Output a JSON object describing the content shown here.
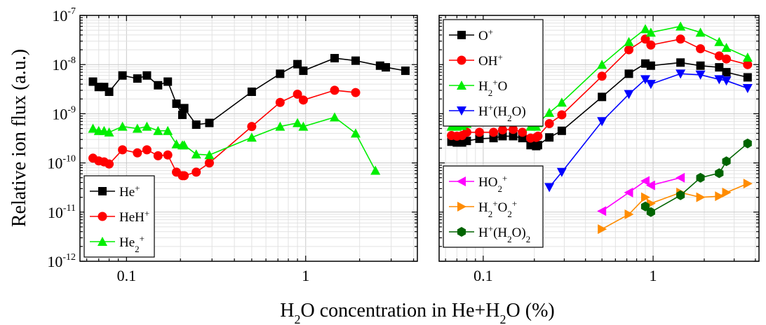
{
  "chart_data": {
    "type": "line",
    "xlabel": {
      "main": "H",
      "sub": "2",
      "rest": "O concentration in He+H",
      "sub2": "2",
      "tail": "O (%)"
    },
    "ylabel": "Relative ion flux (a.u.)",
    "x_scale": "log",
    "y_scale": "log",
    "xlim": [
      0.055,
      4.2
    ],
    "ylim": [
      1e-12,
      1e-07
    ],
    "x_ticks": [
      {
        "value": 0.1,
        "label": "0.1"
      },
      {
        "value": 1,
        "label": "1"
      }
    ],
    "y_ticks": [
      {
        "value": 1e-12,
        "base": "10",
        "exp": "-12"
      },
      {
        "value": 1e-11,
        "base": "10",
        "exp": "-11"
      },
      {
        "value": 1e-10,
        "base": "10",
        "exp": "-10"
      },
      {
        "value": 1e-09,
        "base": "10",
        "exp": "-9"
      },
      {
        "value": 1e-08,
        "base": "10",
        "exp": "-8"
      },
      {
        "value": 1e-07,
        "base": "10",
        "exp": "-7"
      }
    ],
    "grid": true,
    "panels": [
      {
        "id": "left",
        "legend_position": "bottom-left",
        "series": [
          {
            "name": "He",
            "sup": "+",
            "sub": "",
            "color": "#000000",
            "marker": "square",
            "x": [
              0.065,
              0.07,
              0.075,
              0.08,
              0.095,
              0.115,
              0.13,
              0.15,
              0.17,
              0.19,
              0.205,
              0.21,
              0.245,
              0.29,
              0.5,
              0.72,
              0.9,
              0.97,
              1.45,
              1.9,
              2.6,
              2.8,
              3.6
            ],
            "y": [
              4.5e-09,
              3.5e-09,
              3.5e-09,
              2.8e-09,
              6e-09,
              5.2e-09,
              6e-09,
              3.8e-09,
              4.5e-09,
              1.6e-09,
              9.5e-10,
              1.3e-09,
              6e-10,
              6.5e-10,
              2.8e-09,
              6.5e-09,
              1.02e-08,
              7.5e-09,
              1.35e-08,
              1.2e-08,
              9.5e-09,
              8.8e-09,
              7.5e-09
            ]
          },
          {
            "name": "HeH",
            "sup": "+",
            "sub": "",
            "color": "#ff0000",
            "marker": "circle",
            "x": [
              0.065,
              0.07,
              0.075,
              0.08,
              0.095,
              0.115,
              0.13,
              0.15,
              0.17,
              0.19,
              0.205,
              0.21,
              0.245,
              0.29,
              0.5,
              0.72,
              0.9,
              0.97,
              1.45,
              1.9
            ],
            "y": [
              1.25e-10,
              1.1e-10,
              1.05e-10,
              9.5e-11,
              1.85e-10,
              1.6e-10,
              1.85e-10,
              1.4e-10,
              1.45e-10,
              6.5e-11,
              5.5e-11,
              5.5e-11,
              6.5e-11,
              1e-10,
              5.5e-10,
              1.7e-09,
              2.5e-09,
              1.9e-09,
              3e-09,
              2.7e-09
            ]
          },
          {
            "name": "He",
            "sup": "+",
            "sub": "2",
            "color": "#00ee00",
            "marker": "triangle-up",
            "x": [
              0.065,
              0.07,
              0.075,
              0.08,
              0.095,
              0.115,
              0.13,
              0.15,
              0.17,
              0.19,
              0.205,
              0.21,
              0.245,
              0.29,
              0.5,
              0.72,
              0.9,
              0.97,
              1.45,
              1.9,
              2.45
            ],
            "y": [
              5e-10,
              4.5e-10,
              4.5e-10,
              4.2e-10,
              5.5e-10,
              5e-10,
              5.5e-10,
              4.5e-10,
              4.5e-10,
              2.4e-10,
              2.3e-10,
              2.3e-10,
              1.5e-10,
              1.45e-10,
              3.3e-10,
              5.5e-10,
              6.5e-10,
              5.5e-10,
              8.5e-10,
              4e-10,
              7e-11
            ]
          }
        ]
      },
      {
        "id": "right",
        "legend_position": "top-left",
        "legend2_position": "bottom-left",
        "series": [
          {
            "name": "O",
            "sup": "+",
            "sub": "",
            "color": "#000000",
            "marker": "square",
            "legend": 1,
            "x": [
              0.065,
              0.07,
              0.075,
              0.08,
              0.095,
              0.115,
              0.13,
              0.15,
              0.17,
              0.19,
              0.205,
              0.21,
              0.245,
              0.29,
              0.5,
              0.72,
              0.9,
              0.97,
              1.45,
              1.9,
              2.45,
              2.7,
              3.6
            ],
            "y": [
              2.7e-10,
              2.6e-10,
              2.6e-10,
              2.8e-10,
              3.1e-10,
              3.2e-10,
              3.5e-10,
              3.5e-10,
              3.2e-10,
              2.3e-10,
              2.2e-10,
              2.3e-10,
              3.3e-10,
              4.5e-10,
              2.2e-09,
              6.5e-09,
              1.05e-08,
              9.5e-09,
              1.1e-08,
              9.5e-09,
              8.8e-09,
              7e-09,
              5.5e-09
            ]
          },
          {
            "name": "OH",
            "sup": "+",
            "sub": "",
            "color": "#ff0000",
            "marker": "circle",
            "legend": 1,
            "x": [
              0.065,
              0.07,
              0.075,
              0.08,
              0.095,
              0.115,
              0.13,
              0.15,
              0.17,
              0.19,
              0.205,
              0.21,
              0.245,
              0.29,
              0.5,
              0.72,
              0.9,
              0.97,
              1.45,
              1.9,
              2.45,
              2.7,
              3.6
            ],
            "y": [
              3.6e-10,
              3.5e-10,
              3.6e-10,
              4.2e-10,
              4.2e-10,
              4.2e-10,
              4.7e-10,
              4.8e-10,
              4.2e-10,
              3.2e-10,
              3.3e-10,
              3.5e-10,
              6.3e-10,
              9.5e-10,
              5.8e-09,
              2e-08,
              3.3e-08,
              2.5e-08,
              3.3e-08,
              2.1e-08,
              1.5e-08,
              1.3e-08,
              1e-08
            ]
          },
          {
            "name": "H",
            "sup": "+",
            "sub": "2",
            "rest": "O",
            "color": "#00ee00",
            "marker": "triangle-up",
            "legend": 1,
            "x": [
              0.065,
              0.07,
              0.075,
              0.08,
              0.095,
              0.115,
              0.13,
              0.15,
              0.17,
              0.19,
              0.205,
              0.21,
              0.245,
              0.29,
              0.5,
              0.72,
              0.9,
              0.97,
              1.45,
              1.9,
              2.45,
              2.7,
              3.6
            ],
            "y": [
              5.5e-10,
              5.5e-10,
              5.7e-10,
              6.3e-10,
              6.8e-10,
              6.8e-10,
              7e-10,
              7e-10,
              6.8e-10,
              5.5e-10,
              5.5e-10,
              6.5e-10,
              1.05e-09,
              1.7e-09,
              1e-08,
              2.9e-08,
              5.3e-08,
              4.5e-08,
              6e-08,
              4.5e-08,
              2.9e-08,
              2.2e-08,
              1.4e-08
            ]
          },
          {
            "name": "H",
            "sup": "+",
            "sub": "",
            "rest": "(H2O)",
            "color": "#0000ff",
            "marker": "triangle-down",
            "legend": 1,
            "x": [
              0.245,
              0.29,
              0.5,
              0.72,
              0.9,
              0.97,
              1.45,
              1.9,
              2.45,
              2.7,
              3.6
            ],
            "y": [
              3.2e-11,
              6.5e-11,
              7e-10,
              2.5e-09,
              5e-09,
              4e-09,
              6.5e-09,
              6.2e-09,
              5e-09,
              4.7e-09,
              3.3e-09
            ]
          },
          {
            "name": "HO",
            "sup": "+",
            "sub": "2",
            "color": "#ff00ff",
            "marker": "triangle-left",
            "legend": 2,
            "x": [
              0.5,
              0.72,
              0.9,
              0.97,
              1.45
            ],
            "y": [
              1.05e-11,
              2.5e-11,
              4.3e-11,
              3.5e-11,
              5e-11
            ]
          },
          {
            "name": "H",
            "sup": "+",
            "sub": "2",
            "rest": "O2",
            "color": "#ff8c00",
            "marker": "triangle-right",
            "legend": 2,
            "x": [
              0.5,
              0.72,
              0.9,
              0.97,
              1.45,
              1.9,
              2.45,
              2.7,
              3.6
            ],
            "y": [
              4.5e-12,
              9e-12,
              2e-11,
              1.5e-11,
              2.5e-11,
              2e-11,
              2.1e-11,
              2.5e-11,
              3.8e-11
            ]
          },
          {
            "name": "H",
            "sup": "+",
            "sub": "",
            "rest": "(H2O)2",
            "color": "#006400",
            "marker": "hexagon",
            "legend": 2,
            "x": [
              0.9,
              0.97,
              1.45,
              1.9,
              2.45,
              2.7,
              3.6
            ],
            "y": [
              1.3e-11,
              1e-11,
              2.2e-11,
              5e-11,
              6.2e-11,
              1.08e-10,
              2.5e-10
            ]
          }
        ]
      }
    ]
  }
}
